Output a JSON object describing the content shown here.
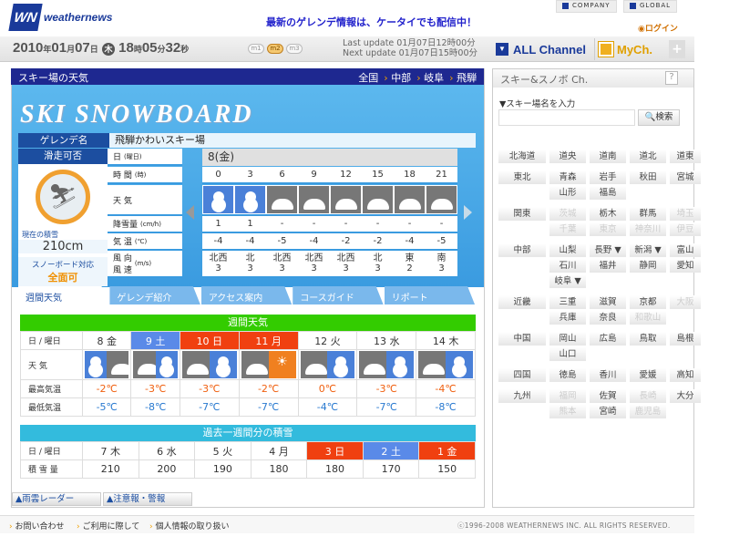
{
  "header": {
    "logo_mark": "WN",
    "logo_text": "weathernews",
    "promo": "最新のゲレンデ情報は、ケータイでも配信中！",
    "company": "COMPANY",
    "global": "GLOBAL",
    "login": "ログイン"
  },
  "datebar": {
    "year": "2010",
    "month": "01",
    "day": "07",
    "weekday": "木",
    "hour": "18",
    "min": "05",
    "sec": "32",
    "units": {
      "y": "年",
      "m": "月",
      "d": "日",
      "h": "時",
      "mi": "分",
      "s": "秒"
    },
    "modes": [
      "m1",
      "m2",
      "m3"
    ],
    "mode_selected": "m2",
    "last_update": "Last update  01月07日12時00分",
    "next_update": "Next update  01月07日15時00分",
    "all_channel": "ALL Channel",
    "mych": "MyCh.",
    "plus": "+"
  },
  "main": {
    "title": "スキー場の天気",
    "breadcrumb": [
      "全国",
      "中部",
      "岐阜",
      "飛騨"
    ],
    "banner": "SKI SNOWBOARD",
    "gelande_label": "ゲレンデ名",
    "gelande_name": "飛騨かわいスキー場",
    "status_label": "滑走可否",
    "snow_label": "現在の積雪",
    "snow_depth": "210cm",
    "snowboard_label": "スノーボード対応",
    "snowboard_value": "全面可",
    "row_labels": [
      {
        "t": "日",
        "u": "(曜日)"
      },
      {
        "t": "時 間",
        "u": "(時)"
      },
      {
        "t": "天 気",
        "u": ""
      },
      {
        "t": "降雪量",
        "u": "(cm/h)"
      },
      {
        "t": "気 温",
        "u": "(℃)"
      },
      {
        "t": "風 向\n風 速",
        "u": "(m/s)"
      }
    ],
    "day_header": "8(金)",
    "hours": [
      "0",
      "3",
      "6",
      "9",
      "12",
      "15",
      "18",
      "21"
    ],
    "weather": [
      "snow",
      "snow",
      "cloud",
      "cloud",
      "cloud",
      "cloud",
      "cloud",
      "cloud"
    ],
    "snowfall": [
      "1",
      "1",
      "-",
      "-",
      "-",
      "-",
      "-",
      "-"
    ],
    "temp": [
      "-4",
      "-4",
      "-5",
      "-4",
      "-2",
      "-2",
      "-4",
      "-5"
    ],
    "wind_dir": [
      "北西",
      "北",
      "北西",
      "北西",
      "北西",
      "北",
      "東",
      "南"
    ],
    "wind_speed": [
      "3",
      "3",
      "3",
      "3",
      "3",
      "3",
      "2",
      "3"
    ],
    "tabs": [
      "週間天気",
      "ゲレンデ紹介",
      "アクセス案内",
      "コースガイド",
      "リポート"
    ],
    "tab_selected": 0
  },
  "weekly": {
    "title": "週間天気",
    "header_color": "#33cc00",
    "labels": {
      "day": "日 / 曜日",
      "weather": "天 気",
      "high": "最高気温",
      "low": "最低気温"
    },
    "days": [
      {
        "d": "8 金",
        "t": ""
      },
      {
        "d": "9 土",
        "t": "sat"
      },
      {
        "d": "10 日",
        "t": "hol"
      },
      {
        "d": "11 月",
        "t": "hol"
      },
      {
        "d": "12 火",
        "t": ""
      },
      {
        "d": "13 水",
        "t": ""
      },
      {
        "d": "14 木",
        "t": ""
      }
    ],
    "weather": [
      [
        "snow",
        "cloud"
      ],
      [
        "cloud",
        "snow"
      ],
      [
        "cloud",
        "snow"
      ],
      [
        "cloud",
        "sun"
      ],
      [
        "cloud",
        "snow"
      ],
      [
        "cloud",
        "snow"
      ],
      [
        "cloud",
        "snow"
      ]
    ],
    "high": [
      "-2℃",
      "-3℃",
      "-3℃",
      "-2℃",
      "0℃",
      "-3℃",
      "-4℃"
    ],
    "low": [
      "-5℃",
      "-8℃",
      "-7℃",
      "-7℃",
      "-4℃",
      "-7℃",
      "-8℃"
    ]
  },
  "past_snow": {
    "title": "過去一週間分の積雪",
    "header_color": "#33bbdd",
    "labels": {
      "day": "日 / 曜日",
      "amount": "積 雪 量"
    },
    "days": [
      {
        "d": "7 木",
        "t": ""
      },
      {
        "d": "6 水",
        "t": ""
      },
      {
        "d": "5 火",
        "t": ""
      },
      {
        "d": "4 月",
        "t": ""
      },
      {
        "d": "3 日",
        "t": "hol"
      },
      {
        "d": "2 土",
        "t": "sat"
      },
      {
        "d": "1 金",
        "t": "hol"
      }
    ],
    "amount": [
      "210",
      "200",
      "190",
      "180",
      "180",
      "170",
      "150"
    ]
  },
  "bottom_buttons": [
    "▲雨雲レーダー",
    "▲注意報・警報"
  ],
  "sidebar": {
    "title": "スキー&スノボ Ch.",
    "help": "?",
    "search_label": "▼スキー場名を入力",
    "search_value": "",
    "search_button": "検索",
    "regions": [
      {
        "name": "北海道",
        "items": [
          [
            "道央",
            1
          ],
          [
            "道南",
            1
          ],
          [
            "道北",
            1
          ],
          [
            "道東",
            1
          ]
        ]
      },
      {
        "name": "東北",
        "items": [
          [
            "青森",
            1
          ],
          [
            "岩手",
            1
          ],
          [
            "秋田",
            1
          ],
          [
            "宮城",
            1
          ],
          [
            "山形",
            1
          ],
          [
            "福島",
            1
          ]
        ]
      },
      {
        "name": "関東",
        "items": [
          [
            "茨城",
            0
          ],
          [
            "栃木",
            1
          ],
          [
            "群馬",
            1
          ],
          [
            "埼玉",
            0
          ],
          [
            "千葉",
            0
          ],
          [
            "東京",
            0
          ],
          [
            "神奈川",
            0
          ],
          [
            "伊豆",
            0
          ]
        ]
      },
      {
        "name": "中部",
        "items": [
          [
            "山梨",
            1
          ],
          [
            "長野 ▼",
            1
          ],
          [
            "新潟 ▼",
            1
          ],
          [
            "富山",
            1
          ],
          [
            "石川",
            1
          ],
          [
            "福井",
            1
          ],
          [
            "静岡",
            1
          ],
          [
            "愛知",
            1
          ],
          [
            "岐阜 ▼",
            1
          ]
        ]
      },
      {
        "name": "近畿",
        "items": [
          [
            "三重",
            1
          ],
          [
            "滋賀",
            1
          ],
          [
            "京都",
            1
          ],
          [
            "大阪",
            0
          ],
          [
            "兵庫",
            1
          ],
          [
            "奈良",
            1
          ],
          [
            "和歌山",
            0
          ]
        ]
      },
      {
        "name": "中国",
        "items": [
          [
            "岡山",
            1
          ],
          [
            "広島",
            1
          ],
          [
            "鳥取",
            1
          ],
          [
            "島根",
            1
          ],
          [
            "山口",
            1
          ]
        ]
      },
      {
        "name": "四国",
        "items": [
          [
            "徳島",
            1
          ],
          [
            "香川",
            1
          ],
          [
            "愛媛",
            1
          ],
          [
            "高知",
            1
          ]
        ]
      },
      {
        "name": "九州",
        "items": [
          [
            "福岡",
            0
          ],
          [
            "佐賀",
            1
          ],
          [
            "長崎",
            0
          ],
          [
            "大分",
            1
          ],
          [
            "熊本",
            0
          ],
          [
            "宮崎",
            1
          ],
          [
            "鹿児島",
            0
          ]
        ]
      }
    ]
  },
  "footer": {
    "links": [
      "お問い合わせ",
      "ご利用に際して",
      "個人情報の取り扱い"
    ],
    "copyright": "ⓒ1996-2008 WEATHERNEWS INC. ALL RIGHTS RESERVED."
  }
}
